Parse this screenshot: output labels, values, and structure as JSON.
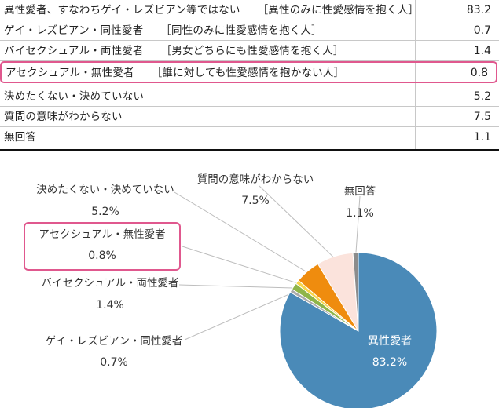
{
  "table": {
    "rows": [
      {
        "label": "異性愛者、すなわちゲイ・レズビアン等ではない",
        "note": "［異性のみに性愛感情を抱く人］",
        "value": "83.2",
        "highlight": false
      },
      {
        "label": "ゲイ・レズビアン・同性愛者",
        "note": "［同性のみに性愛感情を抱く人］",
        "value": "0.7",
        "highlight": false
      },
      {
        "label": "バイセクシュアル・両性愛者",
        "note": "［男女どちらにも性愛感情を抱く人］",
        "value": "1.4",
        "highlight": false
      },
      {
        "label": "アセクシュアル・無性愛者",
        "note": "［誰に対しても性愛感情を抱かない人］",
        "value": "0.8",
        "highlight": true
      },
      {
        "label": "決めたくない・決めていない",
        "note": "",
        "value": "5.2",
        "highlight": false
      },
      {
        "label": "質問の意味がわからない",
        "note": "",
        "value": "7.5",
        "highlight": false
      },
      {
        "label": "無回答",
        "note": "",
        "value": "1.1",
        "highlight": false
      }
    ]
  },
  "chart_data": {
    "type": "pie",
    "start_angle_deg": 0,
    "direction": "clockwise",
    "slices": [
      {
        "label": "異性愛者",
        "value": 83.2,
        "display": "83.2%",
        "color": "#4a8ab8"
      },
      {
        "label": "ゲイ・レズビアン・同性愛者",
        "value": 0.7,
        "display": "0.7%",
        "color": "#a9a9a9"
      },
      {
        "label": "バイセクシュアル・両性愛者",
        "value": 1.4,
        "display": "1.4%",
        "color": "#8fb54a"
      },
      {
        "label": "アセクシュアル・無性愛者",
        "value": 0.8,
        "display": "0.8%",
        "color": "#f7d54a"
      },
      {
        "label": "決めたくない・決めていない",
        "value": 5.2,
        "display": "5.2%",
        "color": "#ef8c0e"
      },
      {
        "label": "質問の意味がわからない",
        "value": 7.5,
        "display": "7.5%",
        "color": "#fbe3dc"
      },
      {
        "label": "無回答",
        "value": 1.1,
        "display": "1.1%",
        "color": "#8c8c8c"
      }
    ],
    "highlighted_slice": "アセクシュアル・無性愛者"
  }
}
